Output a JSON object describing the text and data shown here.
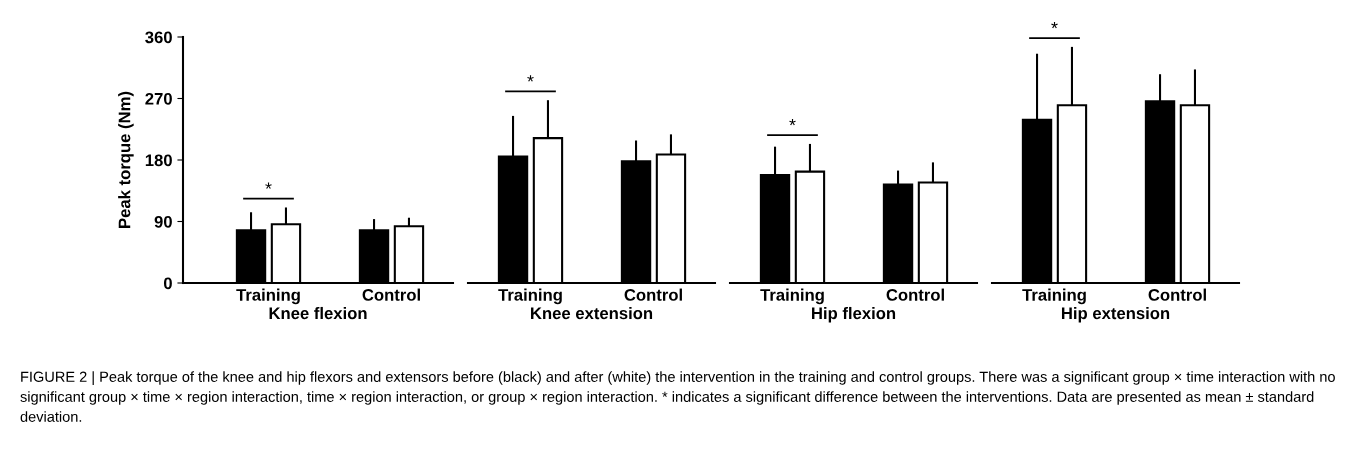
{
  "chart_data": [
    {
      "type": "bar",
      "xlabel": "Knee flexion",
      "ylabel": "Peak torque (Nm)",
      "categories": [
        "Training",
        "Control"
      ],
      "ylim": [
        0,
        360
      ],
      "yticks": [
        0,
        90,
        180,
        270,
        360
      ],
      "grid": false,
      "legend": false,
      "annotations": [
        "*",
        "FIGURE 2 | Peak torque of the knee and hip flexors and extensors before (black) and after (white) the intervention in the training and control groups. There was a significant group × time interaction with no significant group × time × region interaction, time × region interaction, or group × region interaction. * indicates a significant difference between the interventions. Data are presented as mean ± standard deviation."
      ],
      "series": [
        {
          "color": "#000000",
          "values": [
            77,
            77
          ],
          "errors": [
            [
              77,
              102
            ],
            [
              77,
              92
            ]
          ]
        },
        {
          "color": "#ffffff",
          "values": [
            86,
            83
          ],
          "errors": [
            [
              86,
              109
            ],
            [
              83,
              94
            ]
          ]
        }
      ]
    },
    {
      "type": "bar",
      "xlabel": "Knee extension",
      "categories": [
        "Training",
        "Control"
      ],
      "ylim": [
        0,
        360
      ],
      "yticks": [
        0,
        90,
        180,
        270,
        360
      ],
      "tick_labels": "x",
      "grid": false,
      "legend": false,
      "annotations": [
        "*"
      ],
      "series": [
        {
          "color": "#000000",
          "values": [
            185,
            178
          ],
          "errors": [
            [
              185,
              243
            ],
            [
              178,
              207
            ]
          ]
        },
        {
          "color": "#ffffff",
          "values": [
            212,
            188
          ],
          "errors": [
            [
              212,
              266
            ],
            [
              188,
              216
            ]
          ]
        }
      ]
    },
    {
      "type": "bar",
      "xlabel": "Hip flexion",
      "categories": [
        "Training",
        "Control"
      ],
      "ylim": [
        0,
        360
      ],
      "yticks": [
        0,
        90,
        180,
        270,
        360
      ],
      "tick_labels": "x",
      "grid": false,
      "legend": false,
      "annotations": [
        "*"
      ],
      "series": [
        {
          "color": "#000000",
          "values": [
            158,
            144
          ],
          "errors": [
            [
              158,
              198
            ],
            [
              144,
              163
            ]
          ]
        },
        {
          "color": "#ffffff",
          "values": [
            163,
            147
          ],
          "errors": [
            [
              163,
              202
            ],
            [
              147,
              175
            ]
          ]
        }
      ]
    },
    {
      "type": "bar",
      "xlabel": "Hip extension",
      "categories": [
        "Training",
        "Control"
      ],
      "ylim": [
        0,
        360
      ],
      "yticks": [
        0,
        90,
        180,
        270,
        360
      ],
      "tick_labels": "x",
      "grid": false,
      "legend": false,
      "annotations": [
        "*"
      ],
      "series": [
        {
          "color": "#000000",
          "values": [
            239,
            266
          ],
          "errors": [
            [
              239,
              334
            ],
            [
              266,
              304
            ]
          ]
        },
        {
          "color": "#ffffff",
          "values": [
            260,
            260
          ],
          "errors": [
            [
              260,
              344
            ],
            [
              260,
              311
            ]
          ]
        }
      ]
    }
  ]
}
